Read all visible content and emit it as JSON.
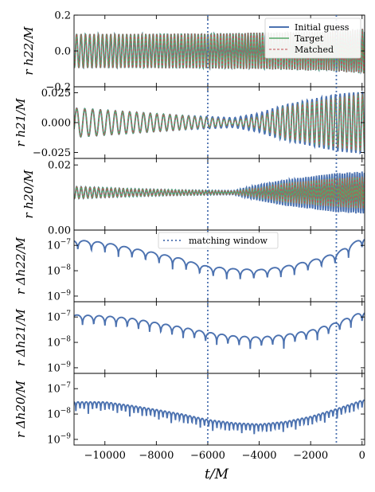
{
  "chart_data": [
    {
      "type": "line",
      "panel": "rh22",
      "ylabel": "r h22/M",
      "ylim": [
        -0.2,
        0.2
      ],
      "yscale": "linear",
      "yticks": [
        -0.2,
        0.0,
        0.2
      ],
      "ytick_labels": [
        "−0.2",
        "0.0",
        "0.2"
      ],
      "legend": {
        "placement": "top-right",
        "entries": [
          "Initial guess",
          "Target",
          "Matched"
        ]
      },
      "series": [
        {
          "name": "Initial guess",
          "color": "#4c72b0",
          "style": "solid",
          "x": [
            -11000,
            -9000,
            -7000,
            -6000,
            -5000,
            -3000,
            -1000,
            0
          ],
          "amplitude": [
            0.095,
            0.095,
            0.097,
            0.098,
            0.1,
            0.105,
            0.115,
            0.125
          ],
          "center": 0.0
        },
        {
          "name": "Target",
          "color": "#55a868",
          "style": "solid",
          "x": [
            -11000,
            -9000,
            -7000,
            -6000,
            -5000,
            -3000,
            -1000,
            0
          ],
          "amplitude": [
            0.095,
            0.095,
            0.097,
            0.098,
            0.1,
            0.105,
            0.115,
            0.125
          ],
          "center": 0.0
        },
        {
          "name": "Matched",
          "color": "#c44e52",
          "style": "dashed",
          "x": [
            -11000,
            -9000,
            -7000,
            -6000,
            -5000,
            -3000,
            -1000,
            0
          ],
          "amplitude": [
            0.095,
            0.095,
            0.097,
            0.098,
            0.1,
            0.105,
            0.115,
            0.125
          ],
          "center": 0.0
        }
      ]
    },
    {
      "type": "line",
      "panel": "rh21",
      "ylabel": "r h21/M",
      "ylim": [
        -0.03,
        0.03
      ],
      "yscale": "linear",
      "yticks": [
        -0.025,
        0.0,
        0.025
      ],
      "ytick_labels": [
        "−0.025",
        "0.000",
        "0.025"
      ],
      "series": [
        {
          "name": "Initial guess",
          "color": "#4c72b0",
          "style": "solid",
          "x": [
            -11000,
            -9000,
            -7000,
            -5000,
            -4000,
            -3000,
            -1000,
            0
          ],
          "amplitude": [
            0.012,
            0.009,
            0.006,
            0.004,
            0.008,
            0.015,
            0.024,
            0.026
          ],
          "center": 0.0
        },
        {
          "name": "Target",
          "color": "#55a868",
          "style": "solid",
          "x": [
            -11000,
            -9000,
            -7000,
            -5000,
            -4000,
            -3000,
            -1000,
            0
          ],
          "amplitude": [
            0.012,
            0.009,
            0.006,
            0.002,
            0.005,
            0.013,
            0.021,
            0.024
          ],
          "center": 0.0
        },
        {
          "name": "Matched",
          "color": "#c44e52",
          "style": "dashed",
          "x": [
            -11000,
            -9000,
            -7000,
            -5000,
            -4000,
            -3000,
            -1000,
            0
          ],
          "amplitude": [
            0.012,
            0.009,
            0.006,
            0.002,
            0.005,
            0.013,
            0.021,
            0.024
          ],
          "center": 0.0
        }
      ]
    },
    {
      "type": "line",
      "panel": "rh20",
      "ylabel": "r h20/M",
      "ylim": [
        0.0,
        0.022
      ],
      "yscale": "linear",
      "yticks": [
        0.0,
        0.02
      ],
      "ytick_labels": [
        "0.00",
        "0.02"
      ],
      "series": [
        {
          "name": "Initial guess",
          "color": "#4c72b0",
          "style": "solid",
          "x": [
            -11000,
            -9000,
            -7000,
            -5000,
            -4000,
            -3000,
            -1000,
            0
          ],
          "amplitude": [
            0.0018,
            0.0012,
            0.0008,
            0.0006,
            0.0025,
            0.004,
            0.006,
            0.0065
          ],
          "center": 0.0115
        },
        {
          "name": "Target",
          "color": "#55a868",
          "style": "solid",
          "x": [
            -11000,
            -9000,
            -7000,
            -5000,
            -4000,
            -3000,
            -1000,
            0
          ],
          "amplitude": [
            0.0018,
            0.0012,
            0.0008,
            0.0005,
            0.0015,
            0.003,
            0.0045,
            0.005
          ],
          "center": 0.0115
        },
        {
          "name": "Matched",
          "color": "#c44e52",
          "style": "dashed",
          "x": [
            -11000,
            -9000,
            -7000,
            -5000,
            -4000,
            -3000,
            -1000,
            0
          ],
          "amplitude": [
            0.0018,
            0.0012,
            0.0008,
            0.0005,
            0.0015,
            0.003,
            0.0045,
            0.005
          ],
          "center": 0.0115
        }
      ]
    },
    {
      "type": "line",
      "panel": "drh22",
      "ylabel": "r Δh22/M",
      "yscale": "log",
      "ylim": [
        6e-10,
        4e-07
      ],
      "yticks": [
        1e-07,
        1e-08,
        1e-09
      ],
      "ytick_labels": [
        "10−7",
        "10−8",
        "10−9"
      ],
      "legend": {
        "placement": "top-center",
        "entries": [
          "matching window"
        ]
      },
      "series": [
        {
          "name": "Initial guess",
          "color": "#4c72b0",
          "style": "solid",
          "x": [
            -11000,
            -10000,
            -9000,
            -8000,
            -7000,
            -6500,
            -6000,
            -5000,
            -4000,
            -3000,
            -2000,
            -1000,
            0
          ],
          "y": [
            1.6e-07,
            1.3e-07,
            8e-08,
            5e-08,
            3e-08,
            2e-08,
            1.5e-08,
            1.2e-08,
            1.1e-08,
            1.5e-08,
            2.5e-08,
            5e-08,
            2e-07
          ]
        }
      ]
    },
    {
      "type": "line",
      "panel": "drh21",
      "ylabel": "r Δh21/M",
      "yscale": "log",
      "ylim": [
        6e-10,
        4e-07
      ],
      "yticks": [
        1e-07,
        1e-08,
        1e-09
      ],
      "ytick_labels": [
        "10−7",
        "10−8",
        "10−9"
      ],
      "series": [
        {
          "name": "Initial guess",
          "color": "#4c72b0",
          "style": "solid",
          "x": [
            -11000,
            -10000,
            -9000,
            -8000,
            -7000,
            -6000,
            -5000,
            -4000,
            -3000,
            -2000,
            -1000,
            0
          ],
          "y": [
            1.2e-07,
            1.1e-07,
            9e-08,
            6e-08,
            4e-08,
            2.5e-08,
            1.8e-08,
            1.6e-08,
            2e-08,
            3e-08,
            6e-08,
            1.6e-07
          ]
        }
      ]
    },
    {
      "type": "line",
      "panel": "drh20",
      "ylabel": "r Δh20/M",
      "xlabel": "t/M",
      "yscale": "log",
      "ylim": [
        6e-10,
        4e-07
      ],
      "yticks": [
        1e-07,
        1e-08,
        1e-09
      ],
      "ytick_labels": [
        "10−7",
        "10−8",
        "10−9"
      ],
      "xlim": [
        -11200,
        100
      ],
      "xticks": [
        -10000,
        -8000,
        -6000,
        -4000,
        -2000,
        0
      ],
      "xtick_labels": [
        "−10000",
        "−8000",
        "−6000",
        "−4000",
        "−2000",
        "0"
      ],
      "series": [
        {
          "name": "Initial guess",
          "color": "#4c72b0",
          "style": "solid",
          "x": [
            -11000,
            -10000,
            -9000,
            -8000,
            -7000,
            -6000,
            -5000,
            -4000,
            -3000,
            -2000,
            -1000,
            0
          ],
          "y": [
            3e-08,
            3e-08,
            2.2e-08,
            1.5e-08,
            1e-08,
            6e-09,
            4.5e-09,
            4e-09,
            5e-09,
            8e-09,
            1.6e-08,
            3.5e-08
          ]
        }
      ]
    }
  ],
  "matching_window": {
    "label": "matching window",
    "t_start": -6000,
    "t_end": -1000,
    "color": "#4c72b0"
  },
  "legend_top": {
    "initial": "Initial guess",
    "target": "Target",
    "matched": "Matched"
  },
  "xaxis": {
    "label": "t/M"
  }
}
